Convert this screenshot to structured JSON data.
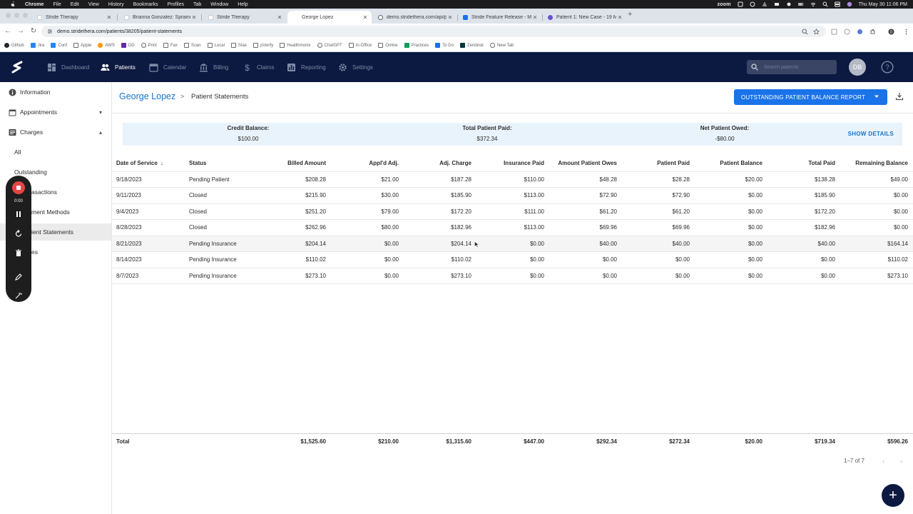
{
  "os_menu": {
    "app": "Chrome",
    "items": [
      "File",
      "Edit",
      "View",
      "History",
      "Bookmarks",
      "Profiles",
      "Tab",
      "Window",
      "Help"
    ],
    "zoom": "zoom",
    "clock": "Thu May 30  11:06 PM"
  },
  "browser": {
    "tabs": [
      {
        "title": "Stride Therapy",
        "color": "#f4f4f4"
      },
      {
        "title": "Brianna Gonzalez: Sprained a",
        "color": "#f4f4f4"
      },
      {
        "title": "Stride Therapy",
        "color": "#f4f4f4"
      },
      {
        "title": "George Lopez",
        "color": "#f4f4f4"
      },
      {
        "title": "demo.stridethera.com/api/pa",
        "color": "#5f6368"
      },
      {
        "title": "Stride Feature Release - May",
        "color": "#1a73e8"
      },
      {
        "title": "Patient 1: New Case - 19 Mar",
        "color": "#6c4fd6"
      }
    ],
    "url": "demo.stridethera.com/patients/38205/patient-statements",
    "bookmarks": [
      {
        "label": "Github",
        "color": "#24292e"
      },
      {
        "label": "Jira",
        "color": "#2684ff"
      },
      {
        "label": "Conf",
        "color": "#2684ff"
      },
      {
        "label": "Apple",
        "color": "#6b6b6b"
      },
      {
        "label": "AWS",
        "color": "#ff9900"
      },
      {
        "label": "DD",
        "color": "#632ca6"
      },
      {
        "label": "Print",
        "color": "#6b6b6b"
      },
      {
        "label": "Fax",
        "color": "#6b6b6b"
      },
      {
        "label": "Scan",
        "color": "#6b6b6b"
      },
      {
        "label": "Local",
        "color": "#6b6b6b"
      },
      {
        "label": "Stax",
        "color": "#6b6b6b"
      },
      {
        "label": "pVerify",
        "color": "#6b6b6b"
      },
      {
        "label": "Healthmonix",
        "color": "#6b6b6b"
      },
      {
        "label": "ChatGPT",
        "color": "#6b6b6b"
      },
      {
        "label": "In-Office",
        "color": "#6b6b6b"
      },
      {
        "label": "Online",
        "color": "#6b6b6b"
      },
      {
        "label": "Practices",
        "color": "#0f9d58"
      },
      {
        "label": "To Do",
        "color": "#1a73e8"
      },
      {
        "label": "Zendesk",
        "color": "#03363d"
      },
      {
        "label": "New Tab",
        "color": "#6b6b6b"
      }
    ]
  },
  "app_nav": {
    "items": [
      {
        "label": "Dashboard",
        "icon": "dashboard-icon"
      },
      {
        "label": "Patients",
        "icon": "patients-icon"
      },
      {
        "label": "Calendar",
        "icon": "calendar-icon"
      },
      {
        "label": "Billing",
        "icon": "billing-icon"
      },
      {
        "label": "Claims",
        "icon": "claims-icon"
      },
      {
        "label": "Reporting",
        "icon": "reporting-icon"
      },
      {
        "label": "Settings",
        "icon": "settings-icon"
      }
    ],
    "search_placeholder": "Search patients",
    "avatar": "DB"
  },
  "sidebar": {
    "information": "Information",
    "appointments": "Appointments",
    "charges": "Charges",
    "sub_items": [
      "All",
      "Outstanding",
      "asactions",
      "ment Methods",
      "ient Statements",
      "es"
    ]
  },
  "recorder": {
    "time": "0:00"
  },
  "header": {
    "patient_name": "George Lopez",
    "separator": ">",
    "page_title": "Patient Statements",
    "report_button": "OUTSTANDING PATIENT BALANCE REPORT"
  },
  "summary": {
    "credit_label": "Credit Balance:",
    "credit_value": "$100.00",
    "paid_label": "Total Patient Paid:",
    "paid_value": "$372.34",
    "owed_label": "Net Patient Owed:",
    "owed_value": "-$80.00",
    "show_details": "SHOW DETAILS"
  },
  "table": {
    "columns": [
      "Date of Service",
      "Status",
      "Billed Amount",
      "Appl'd Adj.",
      "Adj. Charge",
      "Insurance Paid",
      "Amount Patient Owes",
      "Patient Paid",
      "Patient Balance",
      "Total Paid",
      "Remaining Balance"
    ],
    "rows": [
      [
        "9/18/2023",
        "Pending Patient",
        "$208.28",
        "$21.00",
        "$187.28",
        "$110.00",
        "$48.28",
        "$28.28",
        "$20.00",
        "$138.28",
        "$49.00"
      ],
      [
        "9/11/2023",
        "Closed",
        "$215.90",
        "$30.00",
        "$185.90",
        "$113.00",
        "$72.90",
        "$72.90",
        "$0.00",
        "$185.90",
        "$0.00"
      ],
      [
        "9/4/2023",
        "Closed",
        "$251.20",
        "$79.00",
        "$172.20",
        "$111.00",
        "$61.20",
        "$61.20",
        "$0.00",
        "$172.20",
        "$0.00"
      ],
      [
        "8/28/2023",
        "Closed",
        "$262.96",
        "$80.00",
        "$182.96",
        "$113.00",
        "$69.96",
        "$69.96",
        "$0.00",
        "$182.96",
        "$0.00"
      ],
      [
        "8/21/2023",
        "Pending Insurance",
        "$204.14",
        "$0.00",
        "$204.14",
        "$0.00",
        "$40.00",
        "$40.00",
        "$0.00",
        "$40.00",
        "$164.14"
      ],
      [
        "8/14/2023",
        "Pending Insurance",
        "$110.02",
        "$0.00",
        "$110.02",
        "$0.00",
        "$0.00",
        "$0.00",
        "$0.00",
        "$0.00",
        "$110.02"
      ],
      [
        "8/7/2023",
        "Pending Insurance",
        "$273.10",
        "$0.00",
        "$273.10",
        "$0.00",
        "$0.00",
        "$0.00",
        "$0.00",
        "$0.00",
        "$273.10"
      ]
    ],
    "totals": [
      "Total",
      "",
      "$1,525.60",
      "$210.00",
      "$1,315.60",
      "$447.00",
      "$292.34",
      "$272.34",
      "$20.00",
      "$719.34",
      "$596.26"
    ]
  },
  "pagination": {
    "label": "1–7 of 7"
  },
  "colors": {
    "nav_bg": "#0c1940",
    "accent": "#1a73e8",
    "link": "#1a73c9",
    "summary_bg": "#e9f3fb"
  }
}
